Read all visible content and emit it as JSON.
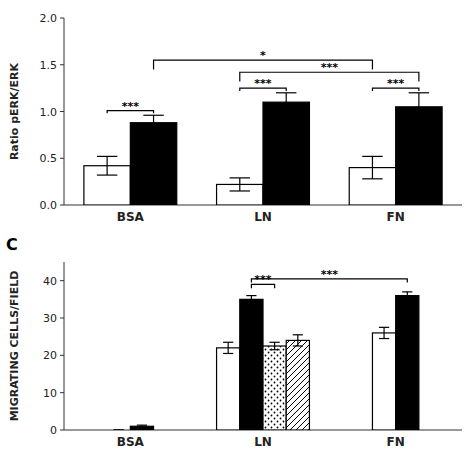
{
  "chart_data": [
    {
      "type": "bar",
      "categories": [
        "BSA",
        "LN",
        "FN"
      ],
      "series": [
        {
          "color": "white",
          "values": [
            0.42,
            0.22,
            0.4
          ],
          "errors": [
            0.1,
            0.07,
            0.12
          ]
        },
        {
          "color": "black",
          "values": [
            0.88,
            1.1,
            1.05
          ],
          "errors": [
            0.08,
            0.1,
            0.15
          ]
        }
      ],
      "ylabel": "Ratio pERK/ERK",
      "ylim": [
        0.0,
        2.0
      ],
      "yticks": [
        {
          "value": 0,
          "label": "0.0"
        },
        0.5,
        {
          "value": 1,
          "label": "1.0"
        },
        1.5,
        {
          "value": 2,
          "label": "2.0"
        }
      ],
      "annotations": [
        "***",
        "***",
        "***",
        "*",
        "***"
      ]
    },
    {
      "type": "bar",
      "title": "C",
      "categories": [
        "BSA",
        "LN",
        "FN"
      ],
      "series": [
        {
          "color": "white",
          "values": [
            0.0,
            22.0,
            26.0
          ],
          "errors": [
            0.0,
            1.5,
            1.5
          ]
        },
        {
          "color": "black",
          "values": [
            1.0,
            35.0,
            36.0
          ],
          "errors": [
            0.3,
            1.0,
            1.0
          ]
        },
        {
          "color": "white",
          "values": [
            null,
            22.5,
            null
          ],
          "errors": [
            null,
            1.0,
            null
          ]
        },
        {
          "color": "white",
          "values": [
            null,
            24.0,
            null
          ],
          "errors": [
            null,
            1.5,
            null
          ]
        }
      ],
      "ylabel": "MIGRATING CELLS/FIELD",
      "ylim": [
        0,
        45
      ],
      "yticks": [
        0,
        10,
        20,
        30,
        40
      ],
      "annotations": [
        "***",
        "***"
      ]
    }
  ]
}
